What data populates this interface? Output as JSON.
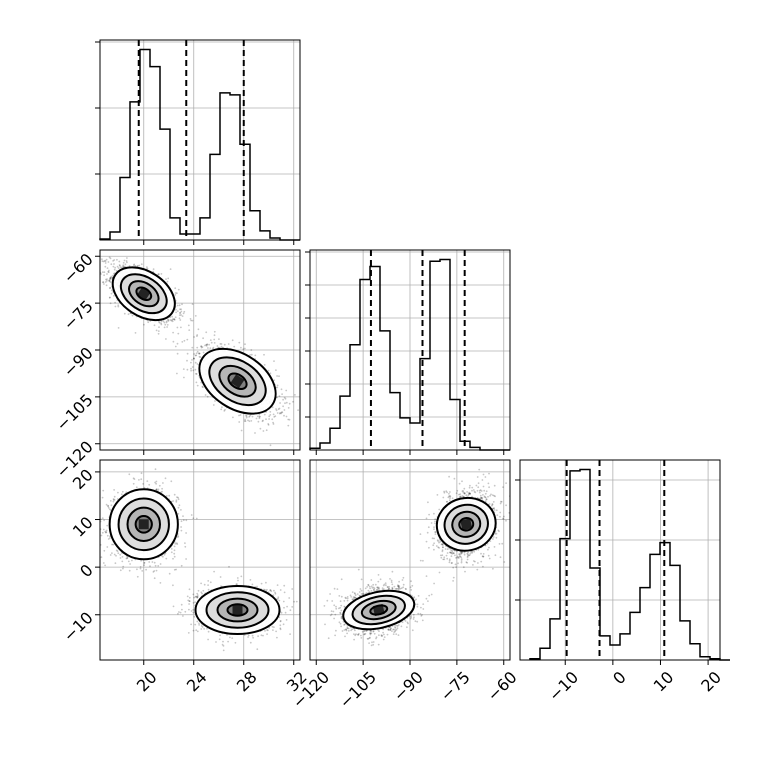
{
  "chart_data": {
    "type": "corner",
    "parameters": [
      {
        "name": "p0",
        "label": "",
        "range": [
          16.5,
          32.5
        ],
        "ticks": [
          "20",
          "24",
          "28",
          "32"
        ],
        "quantiles": [
          19.6,
          23.4,
          28.0
        ],
        "hist_edges_start": 16.5,
        "hist_bin_width": 0.8,
        "hist_counts": [
          1,
          8,
          62,
          137,
          189,
          172,
          110,
          22,
          6,
          6,
          22,
          85,
          146,
          144,
          95,
          29,
          9,
          2,
          0,
          0
        ]
      },
      {
        "name": "p1",
        "label": "",
        "range": [
          -122,
          -58
        ],
        "ticks": [
          "-120",
          "-105",
          "-90",
          "-75",
          "-60"
        ],
        "axis_ticks": [
          "-60",
          "-75",
          "-90",
          "-105",
          "-120"
        ],
        "quantiles": [
          -102.5,
          -86.0,
          -72.5
        ],
        "hist_edges_start": -122,
        "hist_bin_width": 3.2,
        "hist_counts": [
          2,
          8,
          25,
          62,
          121,
          196,
          211,
          137,
          66,
          37,
          31,
          105,
          217,
          219,
          58,
          10,
          3,
          0,
          0,
          0
        ]
      },
      {
        "name": "p2",
        "label": "",
        "range": [
          -19.5,
          22.5
        ],
        "ticks": [
          "-10",
          "0",
          "10",
          "20"
        ],
        "axis_ticks": [
          "20",
          "10",
          "0",
          "-10"
        ],
        "quantiles": [
          -9.7,
          -2.8,
          10.8
        ],
        "hist_edges_start": -17.4,
        "hist_bin_width": 2.1,
        "hist_counts": [
          2,
          18,
          63,
          186,
          290,
          292,
          141,
          37,
          23,
          40,
          73,
          111,
          162,
          180,
          145,
          60,
          25,
          5,
          2,
          0
        ]
      }
    ],
    "clusters": [
      {
        "mean": [
          20.0,
          -72.0,
          9.0
        ],
        "sd": [
          1.3,
          4.5,
          3.5
        ]
      },
      {
        "mean": [
          27.5,
          -100.0,
          -9.0
        ],
        "sd": [
          1.6,
          5.5,
          2.4
        ]
      }
    ],
    "correlation_in_cluster": {
      "p0_p1": -0.6,
      "p0_p2": 0.0,
      "p1_p2": 0.2
    },
    "grid": true
  }
}
